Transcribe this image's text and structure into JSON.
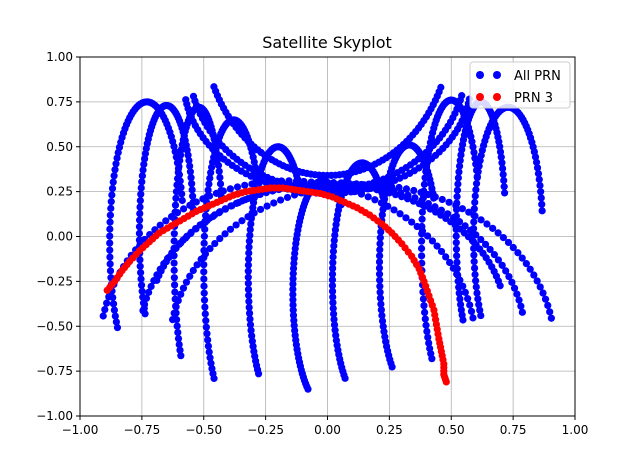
{
  "chart_data": {
    "type": "scatter",
    "title": "Satellite Skyplot",
    "xlabel": "",
    "ylabel": "",
    "xlim": [
      -1.0,
      1.0
    ],
    "ylim": [
      -1.0,
      1.0
    ],
    "grid": true,
    "legend_position": "top-right",
    "x_ticks": [
      "−1.00",
      "−0.75",
      "−0.50",
      "−0.25",
      "0.00",
      "0.25",
      "0.50",
      "0.75",
      "1.00"
    ],
    "y_ticks": [
      "−1.00",
      "−0.75",
      "−0.50",
      "−0.25",
      "0.00",
      "0.25",
      "0.50",
      "0.75",
      "1.00"
    ],
    "series": [
      {
        "name": "All PRN",
        "color": "#0000ff",
        "tracks": [
          {
            "center": [
              -0.73,
              -0.03
            ],
            "rx": 0.15,
            "ry": 0.78,
            "t0": 0.3,
            "t1": 3.8
          },
          {
            "center": [
              -0.65,
              0.01
            ],
            "rx": 0.11,
            "ry": 0.72,
            "t0": 0.2,
            "t1": 3.8
          },
          {
            "center": [
              -0.52,
              -0.1
            ],
            "rx": 0.1,
            "ry": 0.82,
            "t0": 0.4,
            "t1": 3.9
          },
          {
            "center": [
              -0.38,
              -0.17
            ],
            "rx": 0.12,
            "ry": 0.82,
            "t0": 0.6,
            "t1": 4.0
          },
          {
            "center": [
              -0.2,
              -0.22
            ],
            "rx": 0.12,
            "ry": 0.72,
            "t0": 0.7,
            "t1": 4.0
          },
          {
            "center": [
              -0.02,
              -0.31
            ],
            "rx": 0.12,
            "ry": 0.62,
            "t0": 0.9,
            "t1": 4.2
          },
          {
            "center": [
              0.14,
              -0.25
            ],
            "rx": 0.12,
            "ry": 0.66,
            "t0": 0.7,
            "t1": 4.1
          },
          {
            "center": [
              0.33,
              -0.17
            ],
            "rx": 0.12,
            "ry": 0.68,
            "t0": 0.6,
            "t1": 4.1
          },
          {
            "center": [
              0.5,
              -0.06
            ],
            "rx": 0.12,
            "ry": 0.82,
            "t0": 0.5,
            "t1": 4.0
          },
          {
            "center": [
              0.62,
              0.03
            ],
            "rx": 0.1,
            "ry": 0.72,
            "t0": 0.3,
            "t1": 3.9
          },
          {
            "center": [
              0.73,
              0.0
            ],
            "rx": 0.14,
            "ry": 0.72,
            "t0": 0.2,
            "t1": 3.8
          },
          {
            "center": [
              -0.16,
              -0.62
            ],
            "rx": 0.76,
            "ry": 0.93,
            "t0": 0.18,
            "t1": 2.95
          },
          {
            "center": [
              0.02,
              -0.58
            ],
            "rx": 0.78,
            "ry": 0.88,
            "t0": 0.18,
            "t1": 2.95
          },
          {
            "center": [
              0.14,
              -0.64
            ],
            "rx": 0.78,
            "ry": 0.93,
            "t0": 0.2,
            "t1": 2.95
          },
          {
            "center": [
              0.0,
              -0.46
            ],
            "rx": 0.72,
            "ry": 0.75,
            "t0": 0.25,
            "t1": 2.85
          },
          {
            "center": [
              0.0,
              0.86
            ],
            "rx": 0.58,
            "ry": 0.62,
            "t0": 3.3,
            "t1": 6.13
          },
          {
            "center": [
              0.0,
              0.96
            ],
            "rx": 0.56,
            "ry": 0.7,
            "t0": 3.4,
            "t1": 6.03
          },
          {
            "center": [
              0.0,
              1.16
            ],
            "rx": 0.5,
            "ry": 0.82,
            "t0": 3.55,
            "t1": 5.87
          }
        ]
      },
      {
        "name": "PRN 3",
        "color": "#ff0000",
        "points": [
          [
            -0.89,
            -0.3
          ],
          [
            -0.86,
            -0.25
          ],
          [
            -0.83,
            -0.19
          ],
          [
            -0.8,
            -0.14
          ],
          [
            -0.76,
            -0.08
          ],
          [
            -0.72,
            -0.03
          ],
          [
            -0.68,
            0.02
          ],
          [
            -0.63,
            0.06
          ],
          [
            -0.58,
            0.1
          ],
          [
            -0.53,
            0.14
          ],
          [
            -0.48,
            0.17
          ],
          [
            -0.43,
            0.2
          ],
          [
            -0.38,
            0.23
          ],
          [
            -0.33,
            0.25
          ],
          [
            -0.28,
            0.26
          ],
          [
            -0.23,
            0.27
          ],
          [
            -0.18,
            0.27
          ],
          [
            -0.13,
            0.26
          ],
          [
            -0.08,
            0.25
          ],
          [
            -0.03,
            0.24
          ],
          [
            0.02,
            0.22
          ],
          [
            0.07,
            0.19
          ],
          [
            0.12,
            0.16
          ],
          [
            0.17,
            0.12
          ],
          [
            0.22,
            0.07
          ],
          [
            0.26,
            0.02
          ],
          [
            0.3,
            -0.04
          ],
          [
            0.34,
            -0.11
          ],
          [
            0.37,
            -0.18
          ],
          [
            0.39,
            -0.25
          ],
          [
            0.41,
            -0.33
          ],
          [
            0.43,
            -0.41
          ],
          [
            0.44,
            -0.49
          ],
          [
            0.45,
            -0.57
          ],
          [
            0.46,
            -0.64
          ],
          [
            0.47,
            -0.71
          ],
          [
            0.47,
            -0.77
          ],
          [
            0.48,
            -0.81
          ]
        ]
      }
    ]
  }
}
